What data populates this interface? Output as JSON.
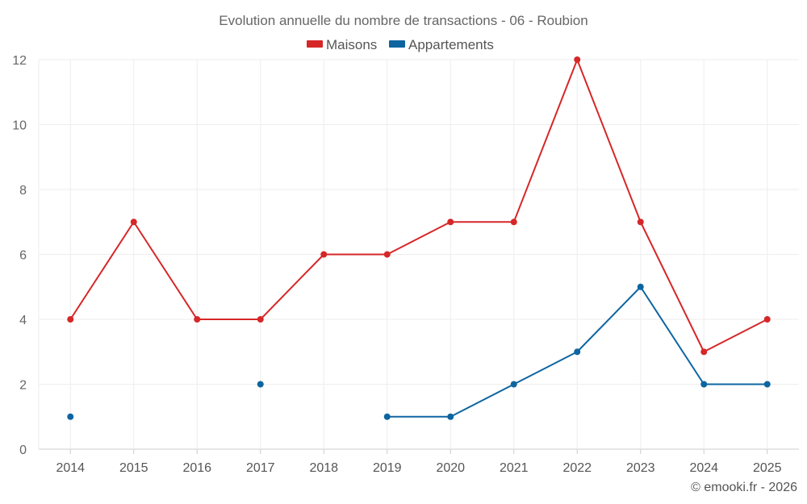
{
  "chart_data": {
    "type": "line",
    "title": "Evolution annuelle du nombre de transactions - 06 - Roubion",
    "categories": [
      "2014",
      "2015",
      "2016",
      "2017",
      "2018",
      "2019",
      "2020",
      "2021",
      "2022",
      "2023",
      "2024",
      "2025"
    ],
    "series": [
      {
        "name": "Maisons",
        "color": "#d62728",
        "values": [
          4,
          7,
          4,
          4,
          6,
          6,
          7,
          7,
          12,
          7,
          3,
          4
        ]
      },
      {
        "name": "Appartements",
        "color": "#0d65a0",
        "values": [
          1,
          null,
          null,
          2,
          null,
          1,
          1,
          2,
          3,
          5,
          2,
          2
        ]
      }
    ],
    "ylim": [
      0,
      12
    ],
    "yticks": [
      "0",
      "2",
      "4",
      "6",
      "8",
      "10",
      "12"
    ],
    "grid": true,
    "legend_position": "top-center",
    "xlabel": "",
    "ylabel": ""
  },
  "credit": "© emooki.fr - 2026"
}
